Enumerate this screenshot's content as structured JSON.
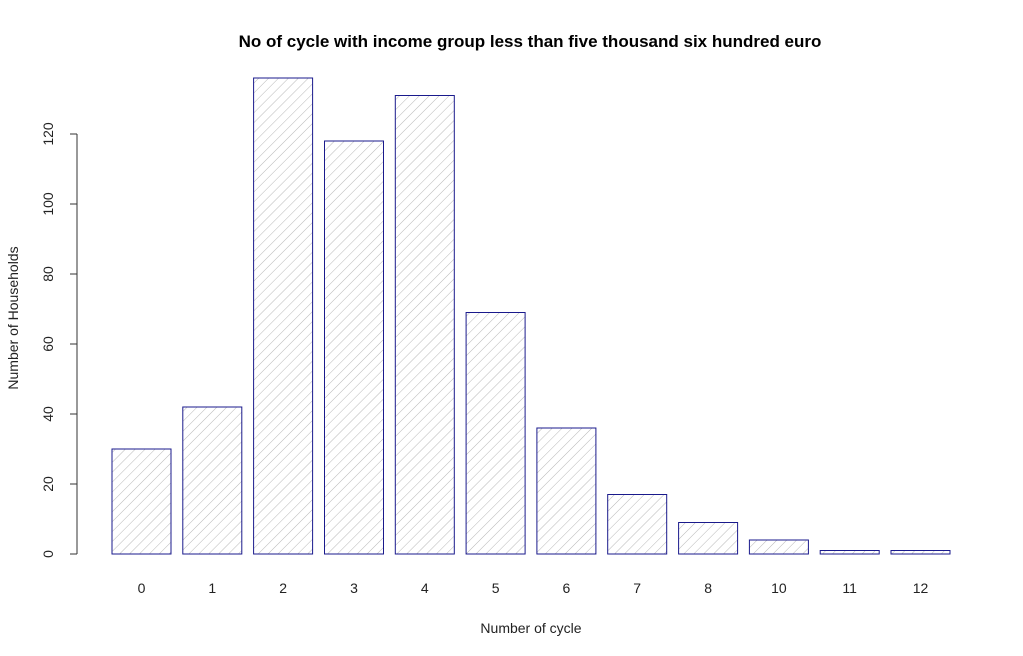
{
  "chart_data": {
    "type": "bar",
    "title": "No of cycle with income group less than five thousand six hundred euro",
    "xlabel": "Number of cycle",
    "ylabel": "Number of Households",
    "categories": [
      "0",
      "1",
      "2",
      "3",
      "4",
      "5",
      "6",
      "7",
      "8",
      "10",
      "11",
      "12"
    ],
    "values": [
      30,
      42,
      136,
      118,
      131,
      69,
      36,
      17,
      9,
      4,
      1,
      1
    ],
    "ylim": [
      0,
      136
    ],
    "yticks": [
      0,
      20,
      40,
      60,
      80,
      100,
      120
    ],
    "grid": false,
    "legend": "none",
    "bar_fill": "hatched",
    "bar_stroke_color": "#1a1a8c",
    "hatch_color": "#b8b8b8"
  }
}
